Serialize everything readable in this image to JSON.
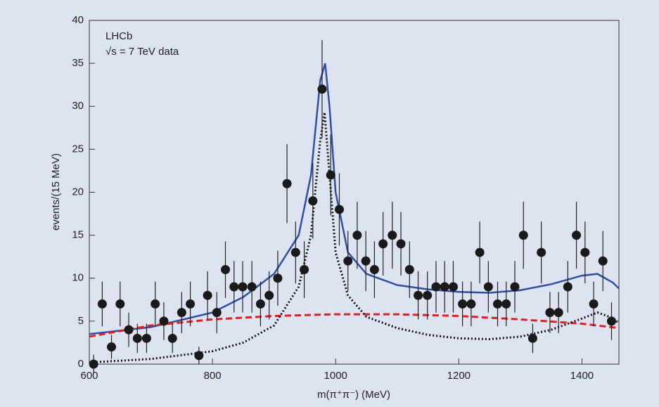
{
  "chart_data": {
    "type": "scatter",
    "annotations": [
      "LHCb",
      "√s = 7 TeV data"
    ],
    "x_label": "m(π⁺π⁻) (MeV)",
    "y_label": "events/(15 MeV)",
    "xlim": [
      600,
      1460
    ],
    "ylim": [
      0,
      40
    ],
    "xticks": [
      600,
      800,
      1000,
      1200,
      1400
    ],
    "yticks": [
      0,
      5,
      10,
      15,
      20,
      25,
      30,
      35,
      40
    ],
    "color": "#1a1a1a",
    "x": [
      607,
      621,
      636,
      650,
      664,
      678,
      693,
      707,
      721,
      735,
      750,
      764,
      778,
      792,
      807,
      821,
      835,
      849,
      864,
      878,
      892,
      906,
      921,
      935,
      949,
      963,
      978,
      992,
      1006,
      1020,
      1035,
      1049,
      1063,
      1077,
      1092,
      1106,
      1120,
      1134,
      1149,
      1163,
      1177,
      1191,
      1206,
      1220,
      1234,
      1248,
      1263,
      1277,
      1291,
      1305,
      1320,
      1334,
      1348,
      1362,
      1377,
      1391,
      1405,
      1419,
      1434,
      1448
    ],
    "values": [
      0,
      7,
      2,
      7,
      4,
      3,
      3,
      7,
      5,
      3,
      6,
      7,
      1,
      8,
      6,
      11,
      9,
      9,
      9,
      7,
      8,
      10,
      21,
      13,
      11,
      19,
      32,
      22,
      18,
      12,
      15,
      12,
      11,
      14,
      15,
      14,
      11,
      8,
      8,
      9,
      9,
      9,
      7,
      7,
      13,
      9,
      7,
      7,
      9,
      15,
      3,
      13,
      6,
      6,
      9,
      15,
      13,
      7,
      12,
      5
    ],
    "errors": [
      1.1,
      2.6,
      1.4,
      2.6,
      2.0,
      1.7,
      1.7,
      2.6,
      2.2,
      1.7,
      2.4,
      2.6,
      1.0,
      2.8,
      2.4,
      3.3,
      3.0,
      3.0,
      3.0,
      2.6,
      2.8,
      3.2,
      4.6,
      3.6,
      3.3,
      4.4,
      5.7,
      4.7,
      4.2,
      3.5,
      3.9,
      3.5,
      3.3,
      3.7,
      3.9,
      3.7,
      3.3,
      2.8,
      2.8,
      3.0,
      3.0,
      3.0,
      2.6,
      2.6,
      3.6,
      3.0,
      2.6,
      2.6,
      3.0,
      3.9,
      1.7,
      3.6,
      2.4,
      2.4,
      3.0,
      3.9,
      3.6,
      2.6,
      3.5,
      2.2
    ],
    "curves": [
      {
        "color": "#2f4fa0",
        "style": "solid",
        "x": [
          600,
          700,
          800,
          850,
          900,
          940,
          960,
          975,
          983,
          990,
          1000,
          1020,
          1050,
          1100,
          1150,
          1200,
          1250,
          1300,
          1350,
          1400,
          1425,
          1450,
          1460
        ],
        "values": [
          3.5,
          4.3,
          6,
          7.8,
          10.5,
          15,
          22,
          33,
          35,
          30,
          20,
          13,
          10.5,
          9.2,
          8.7,
          8.4,
          8.3,
          8.6,
          9.3,
          10.3,
          10.5,
          9.5,
          8.8
        ]
      },
      {
        "color": "#e02020",
        "style": "dashed",
        "x": [
          600,
          700,
          800,
          900,
          1000,
          1100,
          1200,
          1300,
          1400,
          1460
        ],
        "values": [
          3.2,
          4.5,
          5.2,
          5.6,
          5.8,
          5.8,
          5.6,
          5.2,
          4.7,
          4.2
        ]
      },
      {
        "color": "#111111",
        "style": "dotted",
        "x": [
          600,
          700,
          800,
          850,
          900,
          940,
          960,
          975,
          982,
          990,
          1000,
          1020,
          1050,
          1100,
          1150,
          1200,
          1250,
          1300,
          1350,
          1400,
          1425,
          1445,
          1460
        ],
        "values": [
          0.2,
          0.6,
          1.5,
          2.5,
          4.5,
          9,
          15,
          26,
          29.3,
          22,
          13,
          8,
          5.5,
          4.2,
          3.4,
          3,
          2.9,
          3.2,
          4,
          5.3,
          6,
          5.5,
          4.8
        ]
      }
    ]
  }
}
